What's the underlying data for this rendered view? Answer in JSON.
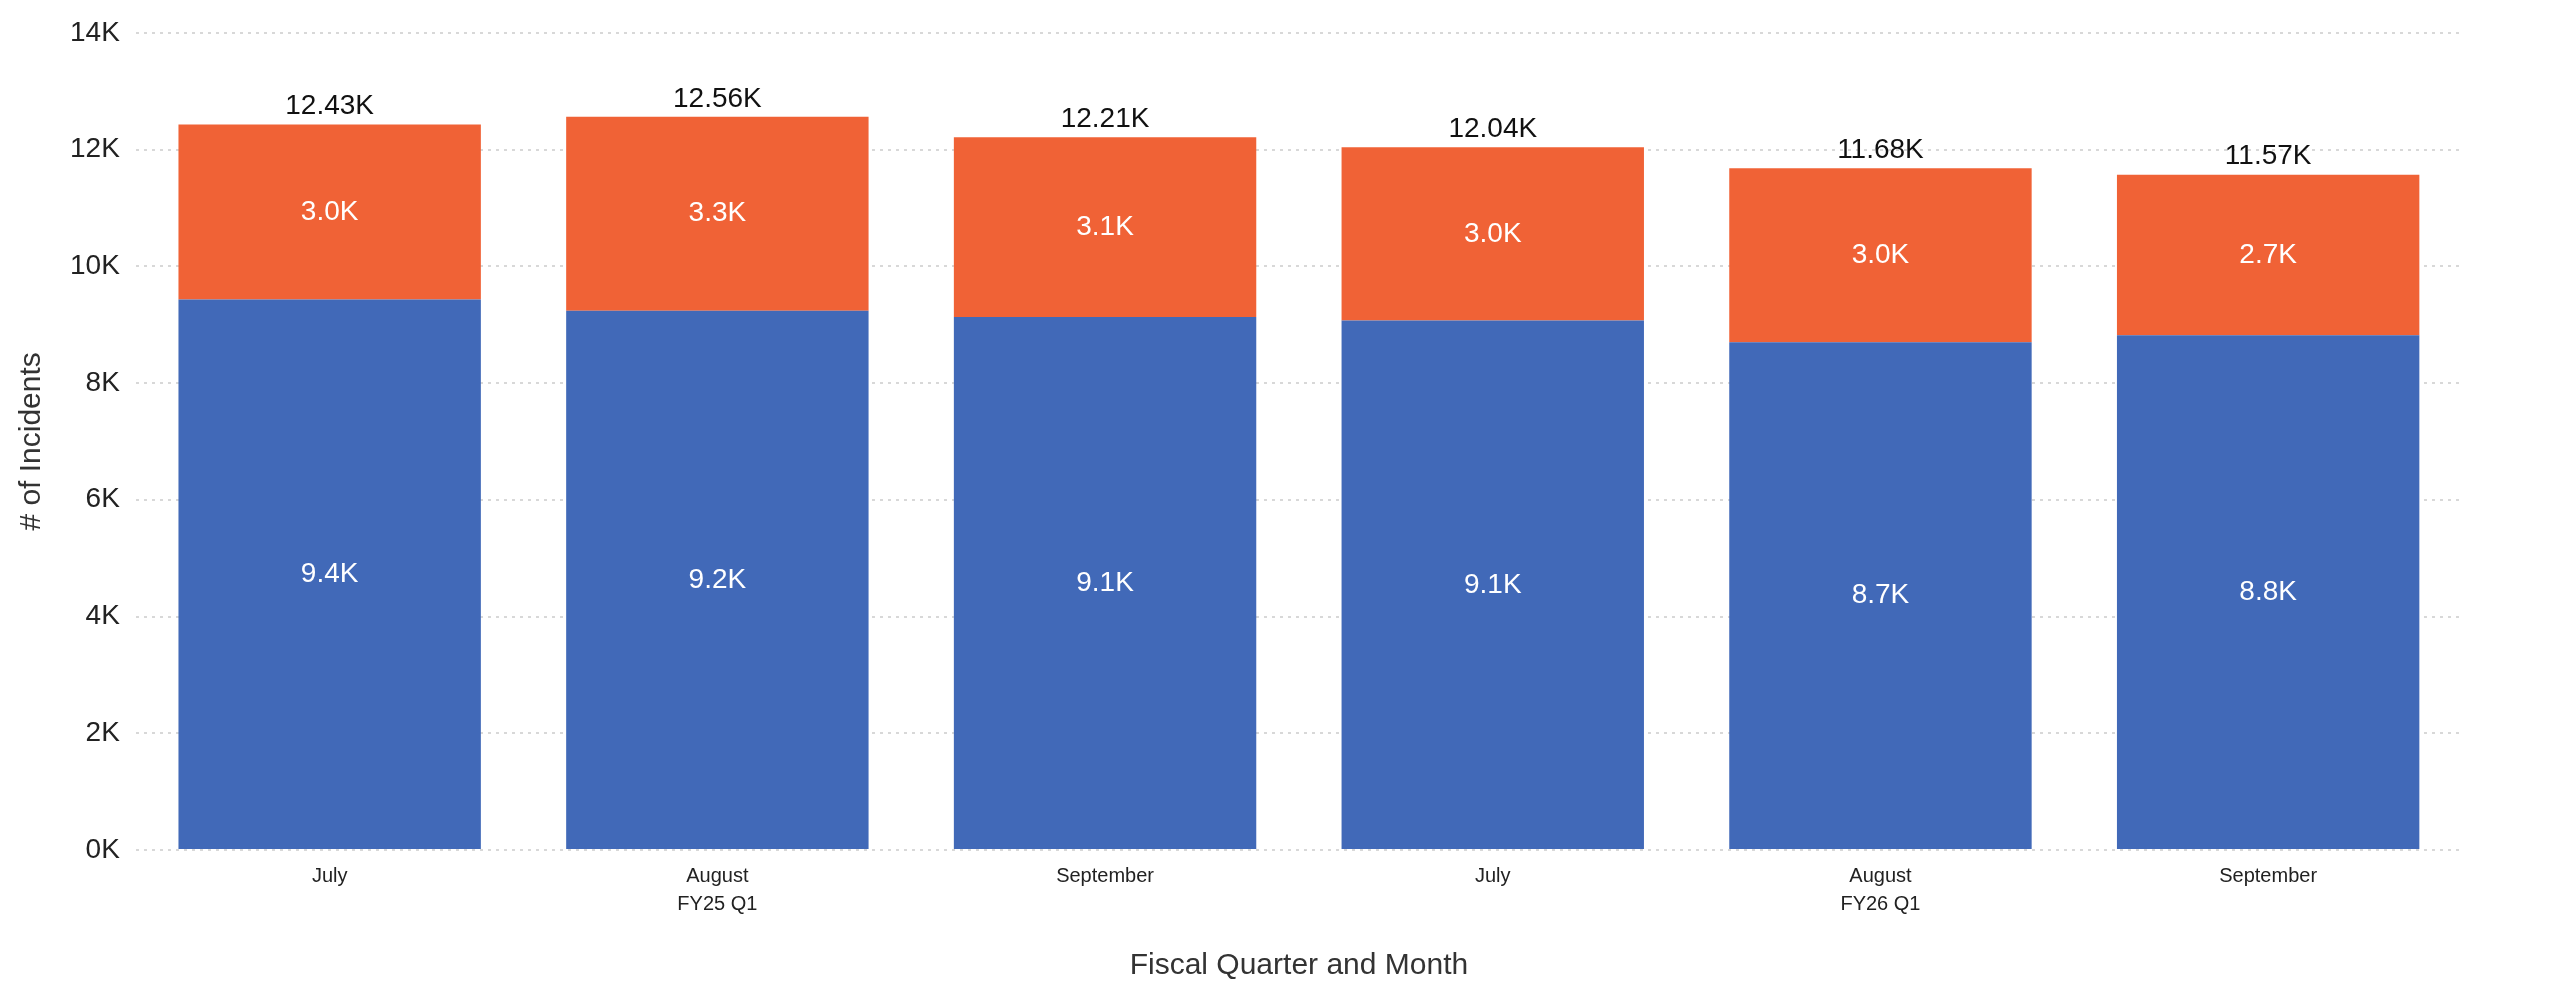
{
  "chart_data": {
    "type": "bar",
    "stacked": true,
    "xlabel": "Fiscal Quarter and Month",
    "ylabel": "# of Incidents",
    "categories": [
      "July",
      "August",
      "September",
      "July",
      "August",
      "September"
    ],
    "series": [
      {
        "color": "#4169b8",
        "values": [
          9430,
          9240,
          9130,
          9070,
          8700,
          8820
        ],
        "value_labels": [
          "9.4K",
          "9.2K",
          "9.1K",
          "9.1K",
          "8.7K",
          "8.8K"
        ]
      },
      {
        "color": "#f06236",
        "values": [
          3000,
          3320,
          3080,
          2970,
          2980,
          2750
        ],
        "value_labels": [
          "3.0K",
          "3.3K",
          "3.1K",
          "3.0K",
          "3.0K",
          "2.7K"
        ]
      }
    ],
    "totals": [
      "12.43K",
      "12.56K",
      "12.21K",
      "12.04K",
      "11.68K",
      "11.57K"
    ],
    "annotations": [
      "FY25 Q1",
      "FY26 Q1"
    ],
    "ylim": [
      0,
      14000
    ],
    "yticks": [
      {
        "value": 0,
        "label": "0K"
      },
      {
        "value": 2000,
        "label": "2K"
      },
      {
        "value": 4000,
        "label": "4K"
      },
      {
        "value": 6000,
        "label": "6K"
      },
      {
        "value": 8000,
        "label": "8K"
      },
      {
        "value": 10000,
        "label": "10K"
      },
      {
        "value": 12000,
        "label": "12K"
      },
      {
        "value": 14000,
        "label": "14K"
      }
    ],
    "grid": "y",
    "legend": false
  }
}
